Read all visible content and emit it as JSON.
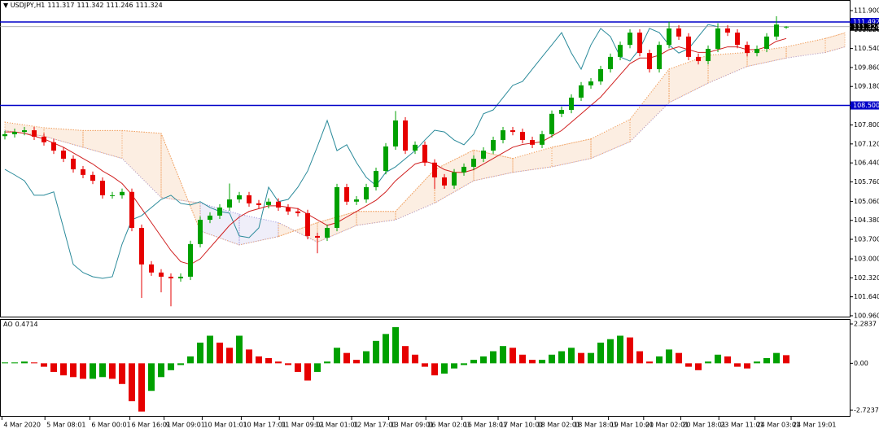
{
  "chart_data": {
    "type": "candlestick",
    "symbol": "USDJPY,H1",
    "xlim": [
      -0.5,
      86.58
    ],
    "ylim": [
      100.9,
      112.28
    ],
    "yticks": [
      {
        "value": 111.9,
        "label": "111.900"
      },
      {
        "value": 111.22,
        "label": "111.220"
      },
      {
        "value": 110.54,
        "label": "110.540"
      },
      {
        "value": 109.86,
        "label": "109.860"
      },
      {
        "value": 109.18,
        "label": "109.180"
      },
      {
        "value": 107.8,
        "label": "107.800"
      },
      {
        "value": 107.12,
        "label": "107.120"
      },
      {
        "value": 106.44,
        "label": "106.440"
      },
      {
        "value": 105.76,
        "label": "105.760"
      },
      {
        "value": 105.06,
        "label": "105.060"
      },
      {
        "value": 104.38,
        "label": "104.380"
      },
      {
        "value": 103.7,
        "label": "103.700"
      },
      {
        "value": 103.0,
        "label": "103.000"
      },
      {
        "value": 102.32,
        "label": "102.320"
      },
      {
        "value": 101.64,
        "label": "101.640"
      },
      {
        "value": 100.96,
        "label": "100.960"
      }
    ],
    "xticks": [
      {
        "value": -0.3,
        "label": "4 Mar 2020"
      },
      {
        "value": 4.1,
        "label": "5 Mar 08:01"
      },
      {
        "value": 8.7,
        "label": "6 Mar 00:01"
      },
      {
        "value": 12.8,
        "label": "6 Mar 16:01"
      },
      {
        "value": 16.3,
        "label": "9 Mar 09:01"
      },
      {
        "value": 20.2,
        "label": "10 Mar 01:01"
      },
      {
        "value": 24.2,
        "label": "10 Mar 17:01"
      },
      {
        "value": 28.1,
        "label": "11 Mar 09:01"
      },
      {
        "value": 31.6,
        "label": "12 Mar 01:01"
      },
      {
        "value": 35.5,
        "label": "12 Mar 17:01"
      },
      {
        "value": 39.3,
        "label": "13 Mar 09:01"
      },
      {
        "value": 43.1,
        "label": "16 Mar 02:01"
      },
      {
        "value": 46.8,
        "label": "16 Mar 18:01"
      },
      {
        "value": 50.5,
        "label": "17 Mar 10:01"
      },
      {
        "value": 54.3,
        "label": "18 Mar 02:01"
      },
      {
        "value": 58.1,
        "label": "18 Mar 18:01"
      },
      {
        "value": 61.8,
        "label": "19 Mar 10:01"
      },
      {
        "value": 65.4,
        "label": "20 Mar 02:01"
      },
      {
        "value": 69.2,
        "label": "20 Mar 18:01"
      },
      {
        "value": 73.1,
        "label": "23 Mar 11:01"
      },
      {
        "value": 76.8,
        "label": "24 Mar 03:01"
      },
      {
        "value": 80.5,
        "label": "24 Mar 19:01"
      }
    ],
    "candles": {
      "up_color": "#00a000",
      "down_color": "#e60000",
      "open": [
        107.4,
        107.47,
        107.55,
        107.61,
        107.38,
        107.18,
        106.88,
        106.59,
        106.21,
        106.01,
        105.8,
        105.28,
        105.28,
        105.4,
        104.11,
        102.8,
        102.51,
        102.36,
        102.3,
        102.36,
        103.53,
        104.4,
        104.55,
        104.84,
        105.13,
        105.28,
        104.99,
        104.93,
        105.05,
        104.84,
        104.7,
        104.64,
        103.82,
        103.76,
        104.11,
        105.57,
        105.05,
        105.13,
        105.57,
        106.15,
        107.03,
        107.96,
        106.88,
        107.09,
        106.45,
        105.92,
        105.63,
        106.1,
        106.3,
        106.59,
        106.88,
        107.26,
        107.61,
        107.55,
        107.26,
        107.09,
        107.47,
        108.2,
        108.34,
        108.78,
        109.22,
        109.36,
        109.8,
        110.24,
        110.67,
        111.11,
        110.38,
        109.8,
        110.67,
        111.26,
        110.97,
        110.24,
        110.09,
        110.53,
        111.26,
        111.11,
        110.67,
        110.38,
        110.53,
        110.97,
        111.317
      ],
      "high": [
        107.59,
        107.67,
        107.73,
        107.73,
        107.5,
        107.3,
        107.0,
        106.71,
        106.33,
        106.13,
        105.92,
        105.4,
        105.52,
        105.52,
        104.23,
        102.92,
        102.63,
        102.48,
        102.48,
        103.65,
        104.52,
        104.67,
        104.96,
        105.7,
        105.4,
        105.4,
        105.11,
        105.17,
        105.17,
        104.96,
        104.82,
        104.76,
        103.94,
        104.23,
        105.69,
        105.69,
        105.25,
        105.69,
        106.27,
        107.15,
        108.3,
        108.08,
        107.21,
        107.21,
        106.57,
        106.04,
        106.22,
        106.42,
        106.71,
        107.0,
        107.38,
        107.73,
        107.73,
        107.67,
        107.38,
        107.59,
        108.32,
        108.46,
        108.9,
        109.34,
        109.48,
        109.92,
        110.36,
        110.79,
        111.23,
        111.23,
        110.5,
        110.79,
        111.5,
        111.38,
        111.09,
        110.36,
        110.65,
        111.45,
        111.38,
        111.23,
        110.79,
        110.65,
        111.09,
        111.7,
        111.342
      ],
      "low": [
        107.28,
        107.35,
        107.43,
        107.26,
        107.06,
        106.76,
        106.47,
        106.09,
        105.89,
        105.68,
        105.16,
        105.16,
        105.16,
        103.99,
        101.6,
        102.39,
        101.8,
        101.3,
        102.18,
        102.24,
        103.41,
        104.28,
        104.43,
        104.72,
        105.01,
        104.87,
        104.81,
        104.81,
        104.72,
        104.58,
        104.52,
        103.7,
        103.2,
        103.64,
        103.99,
        104.93,
        104.93,
        105.01,
        105.45,
        106.03,
        106.91,
        106.76,
        106.76,
        106.33,
        105.5,
        105.51,
        105.51,
        105.98,
        106.18,
        106.47,
        106.76,
        107.14,
        107.43,
        107.14,
        106.97,
        106.97,
        107.35,
        108.08,
        108.22,
        108.66,
        109.1,
        109.24,
        109.68,
        110.12,
        110.55,
        110.26,
        109.68,
        109.68,
        110.55,
        110.85,
        110.12,
        109.97,
        109.97,
        110.41,
        110.99,
        110.55,
        110.26,
        110.26,
        110.41,
        110.85,
        111.246
      ],
      "close": [
        107.47,
        107.55,
        107.61,
        107.38,
        107.18,
        106.88,
        106.59,
        106.21,
        106.01,
        105.8,
        105.28,
        105.28,
        105.4,
        104.11,
        102.8,
        102.51,
        102.36,
        102.3,
        102.36,
        103.53,
        104.4,
        104.55,
        104.84,
        105.13,
        105.28,
        104.99,
        104.93,
        105.05,
        104.84,
        104.7,
        104.64,
        103.82,
        103.76,
        104.11,
        105.57,
        105.05,
        105.13,
        105.57,
        106.15,
        107.03,
        107.96,
        106.88,
        107.09,
        106.45,
        105.92,
        105.63,
        106.1,
        106.3,
        106.59,
        106.88,
        107.26,
        107.61,
        107.55,
        107.26,
        107.09,
        107.47,
        108.2,
        108.34,
        108.78,
        109.22,
        109.36,
        109.8,
        110.24,
        110.67,
        111.11,
        110.38,
        109.8,
        110.67,
        111.26,
        110.97,
        110.24,
        110.09,
        110.53,
        111.26,
        111.11,
        110.67,
        110.38,
        110.53,
        110.97,
        111.4,
        111.324
      ]
    },
    "ma": {
      "color": "#d02020",
      "values": [
        107.55,
        107.55,
        107.5,
        107.4,
        107.3,
        107.15,
        107.0,
        106.8,
        106.6,
        106.4,
        106.15,
        105.95,
        105.7,
        105.3,
        104.8,
        104.3,
        103.8,
        103.3,
        102.9,
        102.8,
        103.0,
        103.4,
        103.8,
        104.2,
        104.5,
        104.7,
        104.8,
        104.9,
        104.9,
        104.85,
        104.8,
        104.6,
        104.4,
        104.2,
        104.3,
        104.5,
        104.7,
        104.9,
        105.1,
        105.4,
        105.8,
        106.1,
        106.4,
        106.5,
        106.4,
        106.2,
        106.1,
        106.1,
        106.2,
        106.4,
        106.6,
        106.8,
        107.0,
        107.1,
        107.15,
        107.2,
        107.4,
        107.6,
        107.9,
        108.2,
        108.5,
        108.8,
        109.2,
        109.6,
        110.0,
        110.2,
        110.2,
        110.3,
        110.5,
        110.6,
        110.5,
        110.4,
        110.4,
        110.5,
        110.6,
        110.6,
        110.5,
        110.5,
        110.6,
        110.8,
        110.9
      ]
    },
    "chikou": {
      "color": "#2a8a9a",
      "values": [
        106.21,
        106.01,
        105.8,
        105.28,
        105.28,
        105.4,
        104.11,
        102.8,
        102.51,
        102.36,
        102.3,
        102.36,
        103.53,
        104.4,
        104.55,
        104.84,
        105.13,
        105.28,
        104.99,
        104.93,
        105.05,
        104.84,
        104.7,
        104.64,
        103.82,
        103.76,
        104.11,
        105.57,
        105.05,
        105.13,
        105.57,
        106.15,
        107.03,
        107.96,
        106.88,
        107.09,
        106.45,
        105.92,
        105.63,
        106.1,
        106.3,
        106.59,
        106.88,
        107.26,
        107.61,
        107.55,
        107.26,
        107.09,
        107.47,
        108.2,
        108.34,
        108.78,
        109.22,
        109.36,
        109.8,
        110.24,
        110.67,
        111.11,
        110.38,
        109.8,
        110.67,
        111.26,
        110.97,
        110.24,
        110.09,
        110.53,
        111.26,
        111.11,
        110.67,
        110.38,
        110.53,
        110.97,
        111.4,
        111.324
      ]
    },
    "cloud": {
      "up_color": "#f0a060",
      "down_color": "#a8a0e0",
      "x": [
        0,
        4,
        8,
        12,
        16,
        20,
        24,
        28,
        32,
        36,
        40,
        44,
        48,
        52,
        56,
        60,
        64,
        68,
        72,
        76,
        80,
        84,
        86
      ],
      "span_a": [
        107.9,
        107.7,
        107.6,
        107.6,
        107.5,
        104.0,
        103.5,
        103.8,
        104.3,
        104.7,
        104.7,
        106.2,
        106.9,
        106.6,
        107.0,
        107.3,
        108.0,
        109.8,
        110.3,
        110.4,
        110.6,
        110.9,
        111.1
      ],
      "span_b": [
        107.6,
        107.4,
        107.0,
        106.6,
        105.2,
        105.0,
        104.6,
        104.3,
        103.6,
        104.2,
        104.4,
        105.0,
        105.8,
        106.1,
        106.3,
        106.6,
        107.2,
        108.6,
        109.3,
        109.9,
        110.2,
        110.4,
        110.6
      ]
    },
    "levels": [
      {
        "value": 111.492,
        "label": "111.492"
      },
      {
        "value": 108.5,
        "label": "108.500"
      }
    ],
    "level_color": "#0000c8",
    "last_price": {
      "value": 111.324,
      "label": "111.324"
    },
    "ao": {
      "title": "AO",
      "up_color": "#00a000",
      "down_color": "#e60000",
      "ylim": [
        -3.1,
        2.567
      ],
      "yticks": [
        2.2837,
        {
          "value": 0,
          "label": "0.00"
        },
        -2.7237
      ],
      "values": [
        0.05,
        0.05,
        0.1,
        0.05,
        -0.2,
        -0.5,
        -0.7,
        -0.8,
        -0.9,
        -0.9,
        -0.8,
        -0.9,
        -1.2,
        -2.2,
        -2.8,
        -1.6,
        -0.8,
        -0.4,
        -0.1,
        0.4,
        1.2,
        1.6,
        1.2,
        0.9,
        1.6,
        0.8,
        0.4,
        0.3,
        0.1,
        -0.1,
        -0.5,
        -1.0,
        -0.5,
        0.1,
        0.9,
        0.6,
        0.2,
        0.7,
        1.3,
        1.7,
        2.1,
        1.0,
        0.5,
        -0.2,
        -0.7,
        -0.6,
        -0.3,
        -0.1,
        0.2,
        0.4,
        0.7,
        1.0,
        0.9,
        0.5,
        0.2,
        0.2,
        0.5,
        0.7,
        0.9,
        0.6,
        0.6,
        1.2,
        1.4,
        1.6,
        1.5,
        0.7,
        0.1,
        0.4,
        0.8,
        0.6,
        -0.2,
        -0.4,
        0.1,
        0.5,
        0.4,
        -0.2,
        -0.3,
        0.1,
        0.3,
        0.6,
        0.4714
      ]
    }
  }
}
